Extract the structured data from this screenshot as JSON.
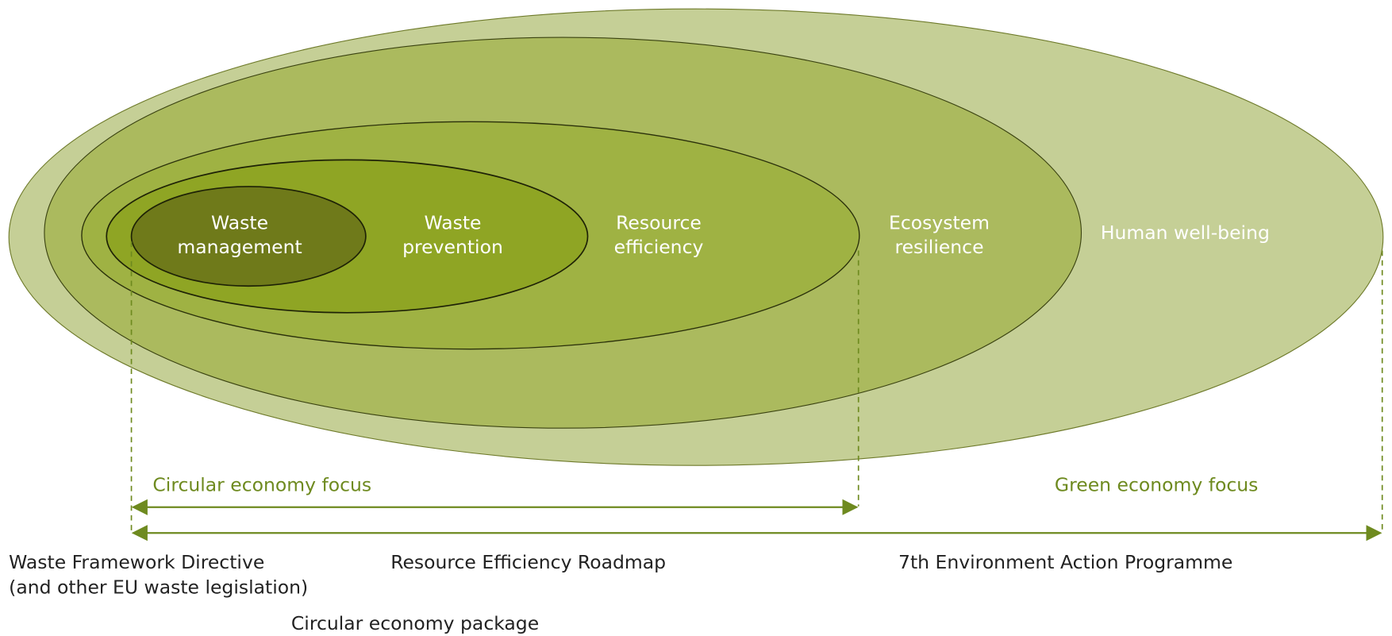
{
  "diagram": {
    "circles": [
      {
        "label": "Waste management"
      },
      {
        "label": "Waste prevention"
      },
      {
        "label": "Resource efficiency"
      },
      {
        "label": "Ecosystem resilience"
      },
      {
        "label": "Human well-being"
      }
    ],
    "focus": {
      "circular": "Circular economy focus",
      "green": "Green economy focus"
    },
    "policies": {
      "wfd_line1": "Waste Framework Directive",
      "wfd_line2": "(and other EU waste legislation)",
      "roadmap": "Resource Efficiency Roadmap",
      "eap": "7th Environment Action Programme",
      "package": "Circular economy package"
    }
  }
}
